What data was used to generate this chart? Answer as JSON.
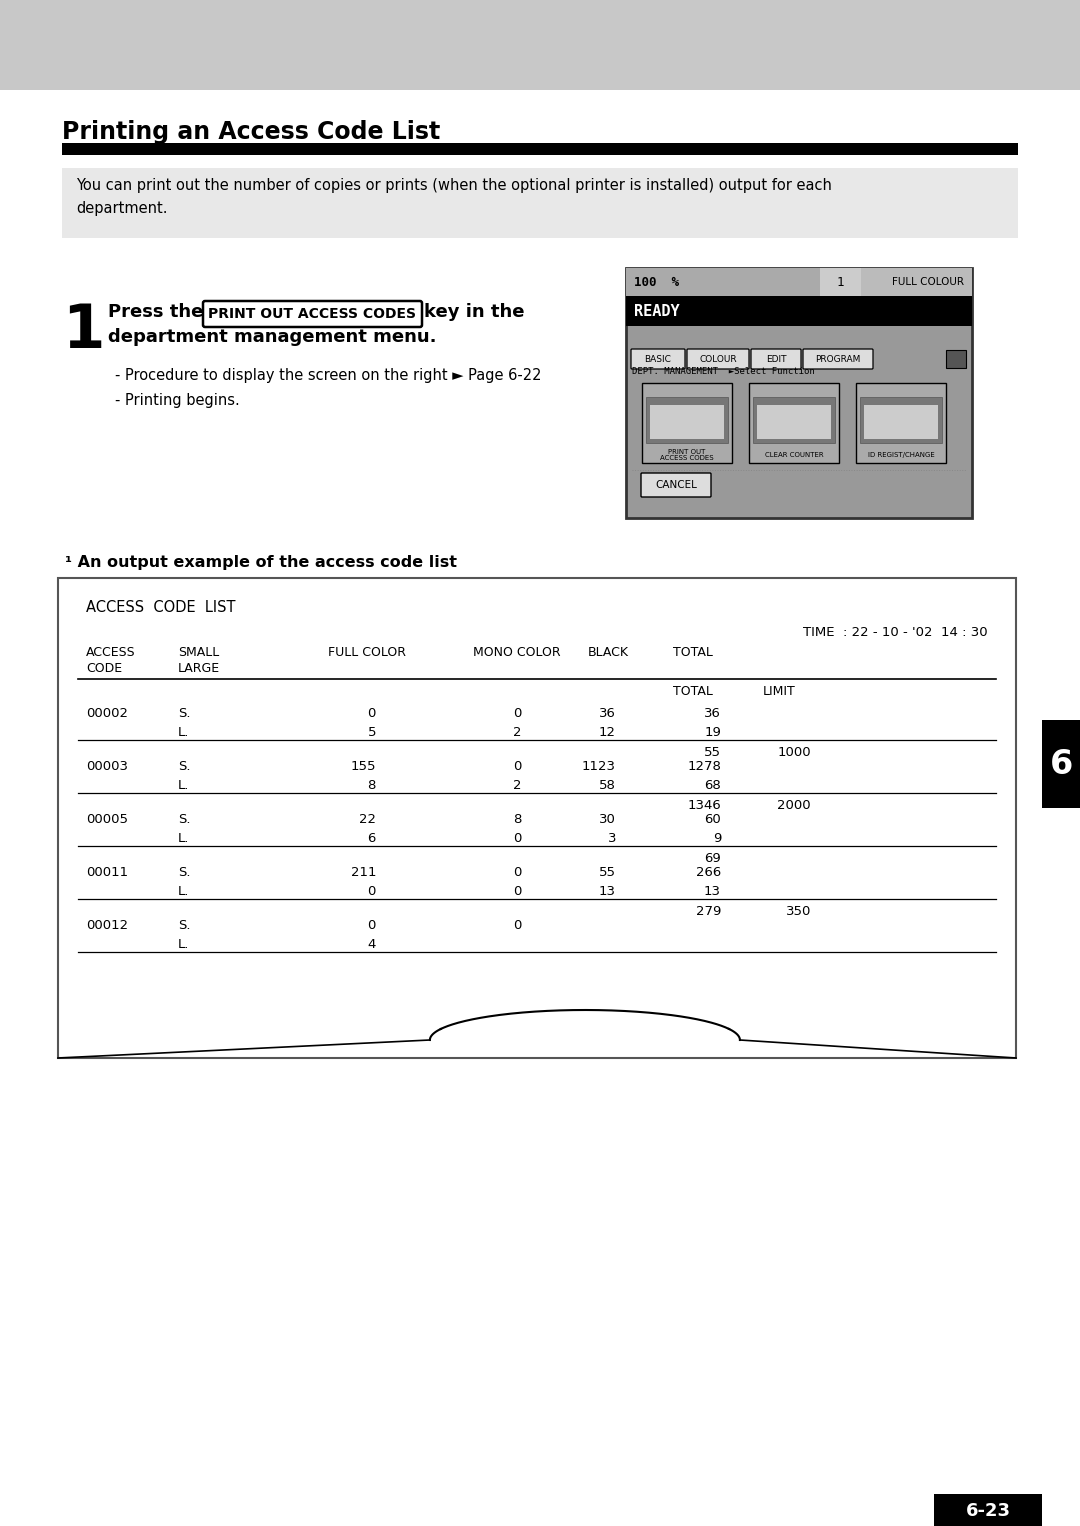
{
  "bg_top_color": "#c8c8c8",
  "bg_white_color": "#ffffff",
  "title": "Printing an Access Code List",
  "title_fontsize": 17,
  "title_bar_color": "#000000",
  "info_box_color": "#e8e8e8",
  "info_text": "You can print out the number of copies or prints (when the optional printer is installed) output for each\ndepartment.",
  "section_label": "¹ An output example of the access code list",
  "sidebar_label": "6",
  "page_label": "6-23",
  "box_outline_color": "#555555",
  "table_data": [
    {
      "code": "00002",
      "rows": [
        {
          "sl": "S.",
          "full": "0",
          "mono": "0",
          "black": "36",
          "total": "36"
        },
        {
          "sl": "L.",
          "full": "5",
          "mono": "2",
          "black": "12",
          "total": "19"
        }
      ],
      "subtotal": "55",
      "limit": "1000"
    },
    {
      "code": "00003",
      "rows": [
        {
          "sl": "S.",
          "full": "155",
          "mono": "0",
          "black": "1123",
          "total": "1278"
        },
        {
          "sl": "L.",
          "full": "8",
          "mono": "2",
          "black": "58",
          "total": "68"
        }
      ],
      "subtotal": "1346",
      "limit": "2000"
    },
    {
      "code": "00005",
      "rows": [
        {
          "sl": "S.",
          "full": "22",
          "mono": "8",
          "black": "30",
          "total": "60"
        },
        {
          "sl": "L.",
          "full": "6",
          "mono": "0",
          "black": "3",
          "total": "9"
        }
      ],
      "subtotal": "69",
      "limit": ""
    },
    {
      "code": "00011",
      "rows": [
        {
          "sl": "S.",
          "full": "211",
          "mono": "0",
          "black": "55",
          "total": "266"
        },
        {
          "sl": "L.",
          "full": "0",
          "mono": "0",
          "black": "13",
          "total": "13"
        }
      ],
      "subtotal": "279",
      "limit": "350"
    },
    {
      "code": "00012",
      "rows": [
        {
          "sl": "S.",
          "full": "0",
          "mono": "0",
          "black": "",
          "total": ""
        },
        {
          "sl": "L.",
          "full": "4",
          "mono": "",
          "black": "",
          "total": ""
        }
      ],
      "subtotal": "",
      "limit": ""
    }
  ]
}
